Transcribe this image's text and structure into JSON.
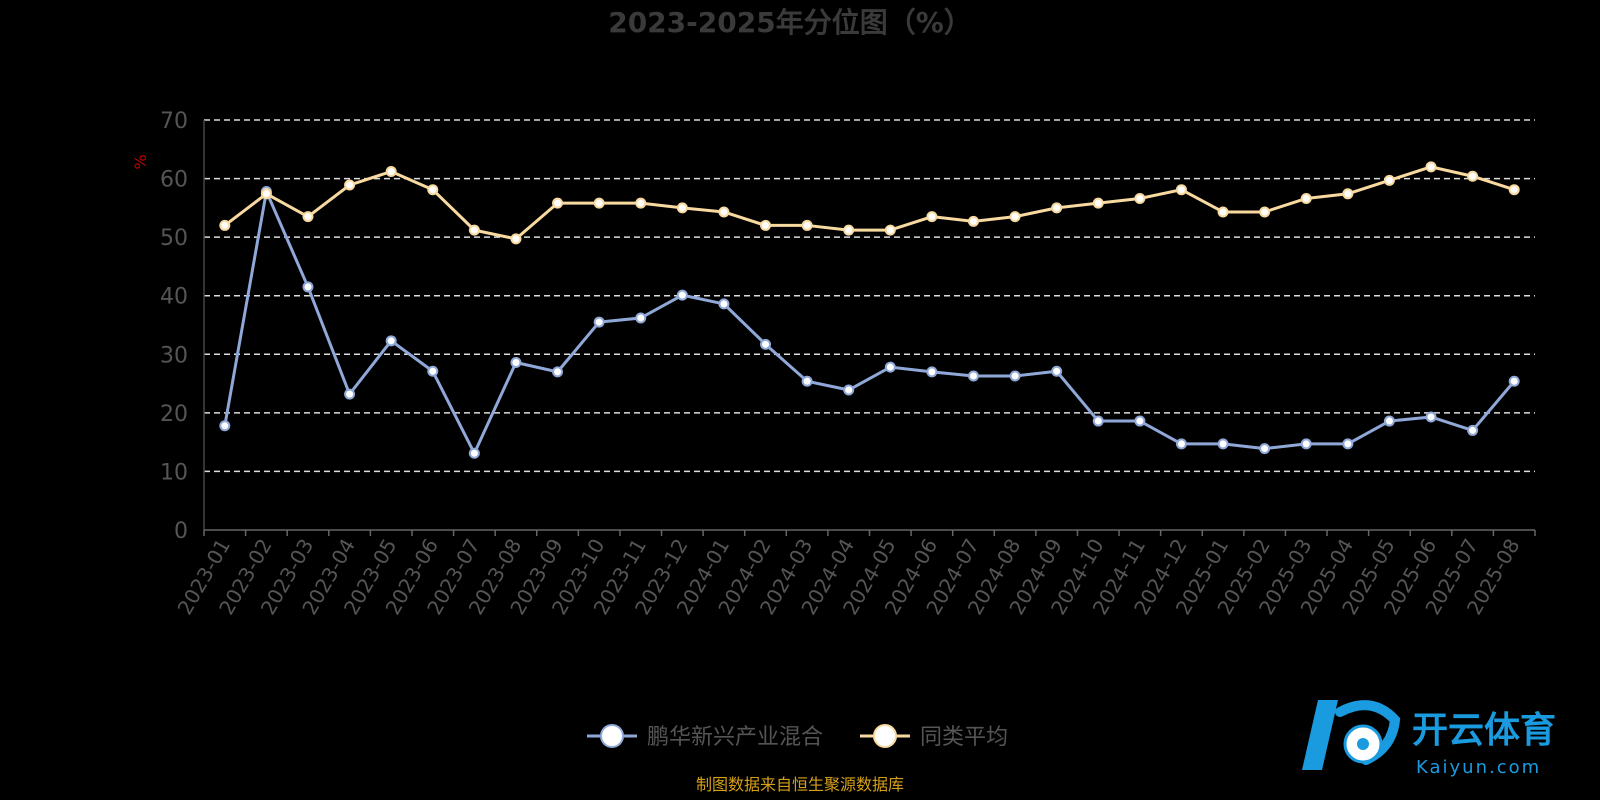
{
  "chart_data": {
    "type": "line",
    "title": "2023-2025年分位图（%）",
    "ylabel": "%",
    "ylim": [
      0,
      70
    ],
    "yticks": [
      0,
      10,
      20,
      30,
      40,
      50,
      60,
      70
    ],
    "grid": true,
    "legend_position": "bottom-center",
    "categories": [
      "2023-01",
      "2023-02",
      "2023-03",
      "2023-04",
      "2023-05",
      "2023-06",
      "2023-07",
      "2023-08",
      "2023-09",
      "2023-10",
      "2023-11",
      "2023-12",
      "2024-01",
      "2024-02",
      "2024-03",
      "2024-04",
      "2024-05",
      "2024-06",
      "2024-07",
      "2024-08",
      "2024-09",
      "2024-10",
      "2024-11",
      "2024-12",
      "2025-01",
      "2025-02",
      "2025-03",
      "2025-04",
      "2025-05",
      "2025-06",
      "2025-07",
      "2025-08"
    ],
    "series": [
      {
        "name": "鹏华新兴产业混合",
        "color": "#8fa8d8",
        "values": [
          17.8,
          57.8,
          41.5,
          23.2,
          32.3,
          27.1,
          13.1,
          28.6,
          27.0,
          35.5,
          36.2,
          40.1,
          38.6,
          31.7,
          25.4,
          23.9,
          27.8,
          27.0,
          26.3,
          26.3,
          27.1,
          18.6,
          18.6,
          14.7,
          14.7,
          13.9,
          14.7,
          14.7,
          18.6,
          19.3,
          17.0,
          25.4
        ]
      },
      {
        "name": "同类平均",
        "color": "#f8d9a0",
        "values": [
          52.0,
          57.4,
          53.5,
          58.9,
          61.2,
          58.1,
          51.2,
          49.7,
          55.8,
          55.8,
          55.8,
          55.0,
          54.3,
          52.0,
          52.0,
          51.2,
          51.2,
          53.5,
          52.7,
          53.5,
          55.0,
          55.8,
          56.6,
          58.1,
          54.3,
          54.3,
          56.6,
          57.4,
          59.7,
          62.0,
          60.4,
          58.1
        ]
      }
    ]
  },
  "footer": {
    "source_text": "制图数据来自恒生聚源数据库"
  },
  "watermark": {
    "brand_cn": "开云体育",
    "brand_en": "Kaiyun.com"
  }
}
